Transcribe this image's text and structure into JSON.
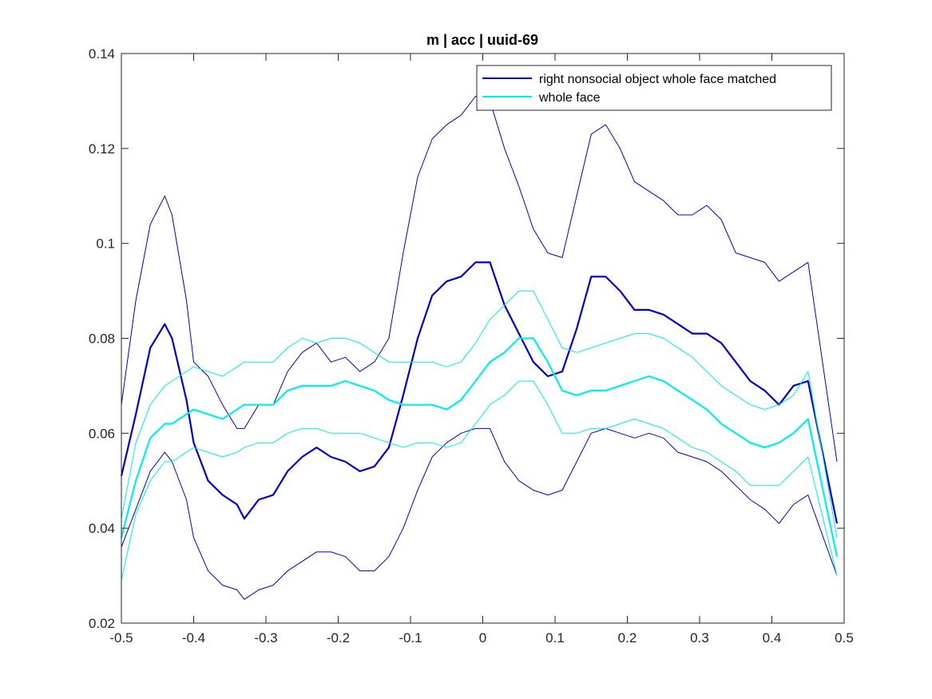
{
  "chart_data": {
    "type": "line",
    "title": "m | acc | uuid-69",
    "xlabel": "",
    "ylabel": "",
    "xlim": [
      -0.5,
      0.5
    ],
    "ylim": [
      0.02,
      0.14
    ],
    "xticks": [
      -0.5,
      -0.4,
      -0.3,
      -0.2,
      -0.1,
      0,
      0.1,
      0.2,
      0.3,
      0.4,
      0.5
    ],
    "xtick_labels": [
      "-0.5",
      "-0.4",
      "-0.3",
      "-0.2",
      "-0.1",
      "0",
      "0.1",
      "0.2",
      "0.3",
      "0.4",
      "0.5"
    ],
    "yticks": [
      0.02,
      0.04,
      0.06,
      0.08,
      0.1,
      0.12,
      0.14
    ],
    "ytick_labels": [
      "0.02",
      "0.04",
      "0.06",
      "0.08",
      "0.1",
      "0.12",
      "0.14"
    ],
    "grid": false,
    "legend_position": "top-right",
    "legend": [
      {
        "label": "right nonsocial object whole face matched",
        "color": "#0000cc"
      },
      {
        "label": "whole face",
        "color": "#00eeee"
      }
    ],
    "series": [
      {
        "name": "right nonsocial object whole face matched",
        "role": "mean",
        "color": "#0000cc",
        "x": [
          -0.5,
          -0.48,
          -0.46,
          -0.44,
          -0.43,
          -0.41,
          -0.4,
          -0.38,
          -0.36,
          -0.34,
          -0.33,
          -0.31,
          -0.29,
          -0.27,
          -0.25,
          -0.23,
          -0.21,
          -0.19,
          -0.17,
          -0.15,
          -0.13,
          -0.11,
          -0.09,
          -0.07,
          -0.05,
          -0.03,
          -0.01,
          0.01,
          0.03,
          0.05,
          0.07,
          0.09,
          0.11,
          0.13,
          0.15,
          0.17,
          0.19,
          0.21,
          0.23,
          0.25,
          0.27,
          0.29,
          0.31,
          0.33,
          0.35,
          0.37,
          0.39,
          0.41,
          0.43,
          0.45,
          0.49
        ],
        "y": [
          0.051,
          0.064,
          0.078,
          0.083,
          0.08,
          0.067,
          0.058,
          0.05,
          0.047,
          0.045,
          0.042,
          0.046,
          0.047,
          0.052,
          0.055,
          0.057,
          0.055,
          0.054,
          0.052,
          0.053,
          0.057,
          0.068,
          0.08,
          0.089,
          0.092,
          0.093,
          0.096,
          0.096,
          0.087,
          0.081,
          0.075,
          0.072,
          0.073,
          0.082,
          0.093,
          0.093,
          0.09,
          0.086,
          0.086,
          0.085,
          0.083,
          0.081,
          0.081,
          0.079,
          0.075,
          0.071,
          0.069,
          0.066,
          0.07,
          0.071,
          0.041
        ]
      },
      {
        "name": "right nonsocial object whole face matched",
        "role": "upper",
        "color": "#0000cc",
        "x": [
          -0.5,
          -0.48,
          -0.46,
          -0.44,
          -0.43,
          -0.41,
          -0.4,
          -0.38,
          -0.36,
          -0.34,
          -0.33,
          -0.31,
          -0.29,
          -0.27,
          -0.25,
          -0.23,
          -0.21,
          -0.19,
          -0.17,
          -0.15,
          -0.13,
          -0.11,
          -0.09,
          -0.07,
          -0.05,
          -0.03,
          -0.01,
          0.01,
          0.03,
          0.05,
          0.07,
          0.09,
          0.11,
          0.13,
          0.15,
          0.17,
          0.19,
          0.21,
          0.23,
          0.25,
          0.27,
          0.29,
          0.31,
          0.33,
          0.35,
          0.37,
          0.39,
          0.41,
          0.43,
          0.45,
          0.49
        ],
        "y": [
          0.066,
          0.088,
          0.104,
          0.11,
          0.106,
          0.088,
          0.075,
          0.072,
          0.066,
          0.061,
          0.061,
          0.066,
          0.066,
          0.073,
          0.077,
          0.079,
          0.075,
          0.076,
          0.073,
          0.075,
          0.08,
          0.098,
          0.114,
          0.122,
          0.125,
          0.127,
          0.131,
          0.13,
          0.12,
          0.112,
          0.103,
          0.098,
          0.097,
          0.11,
          0.123,
          0.125,
          0.12,
          0.113,
          0.111,
          0.109,
          0.106,
          0.106,
          0.108,
          0.105,
          0.098,
          0.097,
          0.096,
          0.092,
          0.094,
          0.096,
          0.054
        ]
      },
      {
        "name": "right nonsocial object whole face matched",
        "role": "lower",
        "color": "#0000cc",
        "x": [
          -0.5,
          -0.48,
          -0.46,
          -0.44,
          -0.43,
          -0.41,
          -0.4,
          -0.38,
          -0.36,
          -0.34,
          -0.33,
          -0.31,
          -0.29,
          -0.27,
          -0.25,
          -0.23,
          -0.21,
          -0.19,
          -0.17,
          -0.15,
          -0.13,
          -0.11,
          -0.09,
          -0.07,
          -0.05,
          -0.03,
          -0.01,
          0.01,
          0.03,
          0.05,
          0.07,
          0.09,
          0.11,
          0.13,
          0.15,
          0.17,
          0.19,
          0.21,
          0.23,
          0.25,
          0.27,
          0.29,
          0.31,
          0.33,
          0.35,
          0.37,
          0.39,
          0.41,
          0.43,
          0.45,
          0.49
        ],
        "y": [
          0.036,
          0.044,
          0.052,
          0.056,
          0.054,
          0.046,
          0.038,
          0.031,
          0.028,
          0.027,
          0.025,
          0.027,
          0.028,
          0.031,
          0.033,
          0.035,
          0.035,
          0.034,
          0.031,
          0.031,
          0.034,
          0.04,
          0.048,
          0.055,
          0.058,
          0.06,
          0.061,
          0.061,
          0.054,
          0.05,
          0.048,
          0.047,
          0.048,
          0.054,
          0.06,
          0.061,
          0.06,
          0.059,
          0.06,
          0.059,
          0.056,
          0.055,
          0.054,
          0.052,
          0.049,
          0.046,
          0.044,
          0.041,
          0.045,
          0.047,
          0.03
        ]
      },
      {
        "name": "whole face",
        "role": "mean",
        "color": "#00eeee",
        "x": [
          -0.5,
          -0.48,
          -0.46,
          -0.44,
          -0.43,
          -0.41,
          -0.4,
          -0.38,
          -0.36,
          -0.34,
          -0.33,
          -0.31,
          -0.29,
          -0.27,
          -0.25,
          -0.23,
          -0.21,
          -0.19,
          -0.17,
          -0.15,
          -0.13,
          -0.11,
          -0.09,
          -0.07,
          -0.05,
          -0.03,
          -0.01,
          0.01,
          0.03,
          0.05,
          0.07,
          0.09,
          0.11,
          0.13,
          0.15,
          0.17,
          0.19,
          0.21,
          0.23,
          0.25,
          0.27,
          0.29,
          0.31,
          0.33,
          0.35,
          0.37,
          0.39,
          0.41,
          0.43,
          0.45,
          0.49
        ],
        "y": [
          0.038,
          0.05,
          0.059,
          0.062,
          0.062,
          0.064,
          0.065,
          0.064,
          0.063,
          0.065,
          0.066,
          0.066,
          0.066,
          0.069,
          0.07,
          0.07,
          0.07,
          0.071,
          0.07,
          0.069,
          0.067,
          0.066,
          0.066,
          0.066,
          0.065,
          0.067,
          0.071,
          0.075,
          0.077,
          0.08,
          0.08,
          0.075,
          0.069,
          0.068,
          0.069,
          0.069,
          0.07,
          0.071,
          0.072,
          0.071,
          0.069,
          0.067,
          0.065,
          0.062,
          0.06,
          0.058,
          0.057,
          0.058,
          0.06,
          0.063,
          0.034
        ]
      },
      {
        "name": "whole face",
        "role": "upper",
        "color": "#00eeee",
        "x": [
          -0.5,
          -0.48,
          -0.46,
          -0.44,
          -0.43,
          -0.41,
          -0.4,
          -0.38,
          -0.36,
          -0.34,
          -0.33,
          -0.31,
          -0.29,
          -0.27,
          -0.25,
          -0.23,
          -0.21,
          -0.19,
          -0.17,
          -0.15,
          -0.13,
          -0.11,
          -0.09,
          -0.07,
          -0.05,
          -0.03,
          -0.01,
          0.01,
          0.03,
          0.05,
          0.07,
          0.09,
          0.11,
          0.13,
          0.15,
          0.17,
          0.19,
          0.21,
          0.23,
          0.25,
          0.27,
          0.29,
          0.31,
          0.33,
          0.35,
          0.37,
          0.39,
          0.41,
          0.43,
          0.45,
          0.49
        ],
        "y": [
          0.042,
          0.058,
          0.066,
          0.07,
          0.071,
          0.073,
          0.074,
          0.073,
          0.072,
          0.074,
          0.075,
          0.075,
          0.075,
          0.078,
          0.08,
          0.079,
          0.08,
          0.08,
          0.079,
          0.077,
          0.075,
          0.075,
          0.075,
          0.075,
          0.074,
          0.075,
          0.079,
          0.084,
          0.087,
          0.09,
          0.09,
          0.084,
          0.078,
          0.077,
          0.078,
          0.079,
          0.08,
          0.081,
          0.081,
          0.08,
          0.078,
          0.076,
          0.073,
          0.07,
          0.068,
          0.066,
          0.065,
          0.066,
          0.068,
          0.073,
          0.038
        ]
      },
      {
        "name": "whole face",
        "role": "lower",
        "color": "#00eeee",
        "x": [
          -0.5,
          -0.48,
          -0.46,
          -0.44,
          -0.43,
          -0.41,
          -0.4,
          -0.38,
          -0.36,
          -0.34,
          -0.33,
          -0.31,
          -0.29,
          -0.27,
          -0.25,
          -0.23,
          -0.21,
          -0.19,
          -0.17,
          -0.15,
          -0.13,
          -0.11,
          -0.09,
          -0.07,
          -0.05,
          -0.03,
          -0.01,
          0.01,
          0.03,
          0.05,
          0.07,
          0.09,
          0.11,
          0.13,
          0.15,
          0.17,
          0.19,
          0.21,
          0.23,
          0.25,
          0.27,
          0.29,
          0.31,
          0.33,
          0.35,
          0.37,
          0.39,
          0.41,
          0.43,
          0.45,
          0.49
        ],
        "y": [
          0.029,
          0.043,
          0.05,
          0.054,
          0.054,
          0.056,
          0.057,
          0.056,
          0.055,
          0.056,
          0.057,
          0.058,
          0.058,
          0.06,
          0.061,
          0.061,
          0.06,
          0.06,
          0.06,
          0.059,
          0.058,
          0.057,
          0.058,
          0.058,
          0.057,
          0.058,
          0.062,
          0.066,
          0.068,
          0.071,
          0.071,
          0.066,
          0.06,
          0.06,
          0.061,
          0.061,
          0.062,
          0.063,
          0.062,
          0.061,
          0.059,
          0.057,
          0.056,
          0.054,
          0.052,
          0.049,
          0.049,
          0.049,
          0.052,
          0.055,
          0.03
        ]
      }
    ]
  }
}
